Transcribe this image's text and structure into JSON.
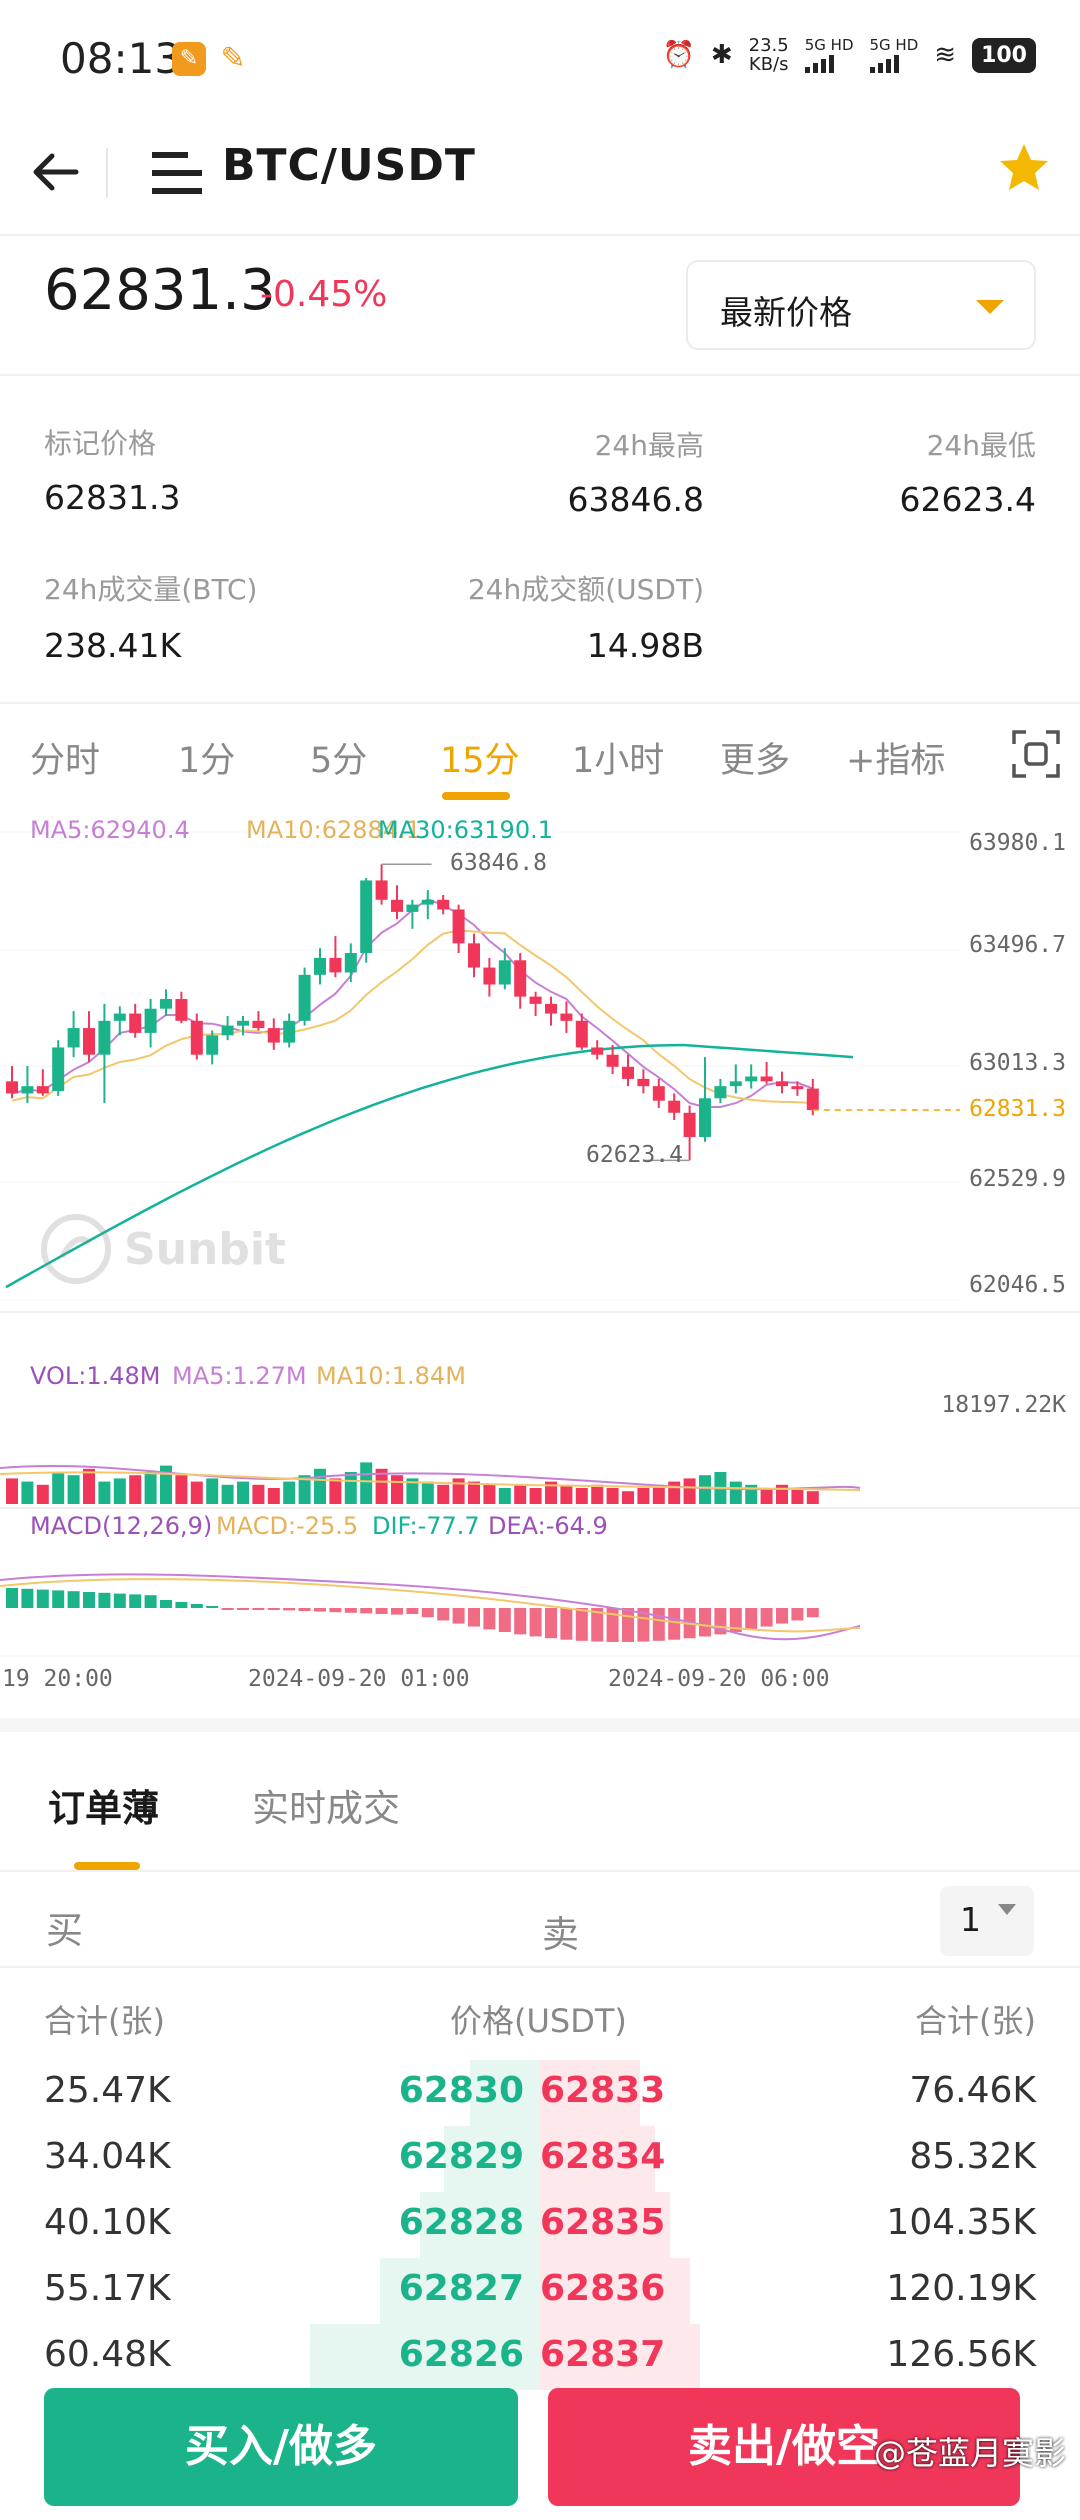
{
  "status_bar": {
    "time": "08:13",
    "net_speed": "23.5",
    "net_unit": "KB/s",
    "sig1": "5G HD",
    "sig2": "5G HD",
    "battery": "100"
  },
  "header": {
    "pair": "BTC/USDT"
  },
  "price": {
    "last": "62831.3",
    "change": "-0.45%",
    "selector": "最新价格"
  },
  "stats": {
    "mark_label": "标记价格",
    "mark_value": "62831.3",
    "high_label": "24h最高",
    "high_value": "63846.8",
    "low_label": "24h最低",
    "low_value": "62623.4",
    "vol_btc_label": "24h成交量(BTC)",
    "vol_btc_value": "238.41K",
    "vol_usdt_label": "24h成交额(USDT)",
    "vol_usdt_value": "14.98B"
  },
  "tabs": [
    "分时",
    "1分",
    "5分",
    "15分",
    "1小时",
    "更多",
    "+指标"
  ],
  "active_tab": "15分",
  "chart": {
    "ma_legend": {
      "ma5": "MA5:62940.4",
      "ma10": "MA10:62884.1",
      "ma30": "MA30:63190.1"
    },
    "y_ticks": [
      "63980.1",
      "63496.7",
      "63013.3",
      "62529.9",
      "62046.5"
    ],
    "current_price_tag": "62831.3",
    "high_marker": "63846.8",
    "low_marker": "62623.4",
    "watermark": "Sunbit",
    "vol_legend": {
      "vol": "VOL:1.48M",
      "ma5": "MA5:1.27M",
      "ma10": "MA10:1.84M"
    },
    "vol_max": "18197.22K",
    "macd_legend": {
      "name": "MACD(12,26,9)",
      "macd": "MACD:-25.5",
      "dif": "DIF:-77.7",
      "dea": "DEA:-64.9"
    },
    "x_ticks": [
      "19 20:00",
      "2024-09-20 01:00",
      "2024-09-20 06:00"
    ],
    "colors": {
      "up": "#1bb38a",
      "down": "#f0375a",
      "ma5": "#c77fd6",
      "ma10": "#f3c76b",
      "ma30": "#12b39a",
      "accent": "#f0a400"
    }
  },
  "chart_data": {
    "type": "candlestick",
    "timeframe": "15分",
    "ylim": [
      62046.5,
      63980.1
    ],
    "candles": [
      {
        "o": 62950,
        "h": 63013,
        "l": 62880,
        "c": 62900
      },
      {
        "o": 62900,
        "h": 63013,
        "l": 62860,
        "c": 62930
      },
      {
        "o": 62930,
        "h": 63000,
        "l": 62890,
        "c": 62900
      },
      {
        "o": 62910,
        "h": 63120,
        "l": 62890,
        "c": 63090
      },
      {
        "o": 63090,
        "h": 63240,
        "l": 63050,
        "c": 63170
      },
      {
        "o": 63170,
        "h": 63240,
        "l": 63030,
        "c": 63060
      },
      {
        "o": 63060,
        "h": 63270,
        "l": 62860,
        "c": 63200
      },
      {
        "o": 63200,
        "h": 63260,
        "l": 63140,
        "c": 63230
      },
      {
        "o": 63230,
        "h": 63270,
        "l": 63130,
        "c": 63150
      },
      {
        "o": 63150,
        "h": 63290,
        "l": 63090,
        "c": 63250
      },
      {
        "o": 63250,
        "h": 63330,
        "l": 63220,
        "c": 63290
      },
      {
        "o": 63290,
        "h": 63320,
        "l": 63190,
        "c": 63200
      },
      {
        "o": 63200,
        "h": 63230,
        "l": 63040,
        "c": 63060
      },
      {
        "o": 63060,
        "h": 63160,
        "l": 63020,
        "c": 63140
      },
      {
        "o": 63140,
        "h": 63220,
        "l": 63120,
        "c": 63180
      },
      {
        "o": 63180,
        "h": 63220,
        "l": 63140,
        "c": 63200
      },
      {
        "o": 63200,
        "h": 63240,
        "l": 63160,
        "c": 63170
      },
      {
        "o": 63170,
        "h": 63210,
        "l": 63080,
        "c": 63110
      },
      {
        "o": 63110,
        "h": 63230,
        "l": 63090,
        "c": 63200
      },
      {
        "o": 63200,
        "h": 63420,
        "l": 63180,
        "c": 63390
      },
      {
        "o": 63390,
        "h": 63500,
        "l": 63350,
        "c": 63460
      },
      {
        "o": 63460,
        "h": 63550,
        "l": 63380,
        "c": 63400
      },
      {
        "o": 63400,
        "h": 63520,
        "l": 63360,
        "c": 63480
      },
      {
        "o": 63480,
        "h": 63790,
        "l": 63440,
        "c": 63780
      },
      {
        "o": 63780,
        "h": 63846.8,
        "l": 63680,
        "c": 63700
      },
      {
        "o": 63700,
        "h": 63760,
        "l": 63620,
        "c": 63650
      },
      {
        "o": 63650,
        "h": 63700,
        "l": 63580,
        "c": 63680
      },
      {
        "o": 63680,
        "h": 63740,
        "l": 63620,
        "c": 63700
      },
      {
        "o": 63700,
        "h": 63720,
        "l": 63640,
        "c": 63660
      },
      {
        "o": 63660,
        "h": 63680,
        "l": 63480,
        "c": 63520
      },
      {
        "o": 63520,
        "h": 63560,
        "l": 63380,
        "c": 63420
      },
      {
        "o": 63420,
        "h": 63460,
        "l": 63300,
        "c": 63350
      },
      {
        "o": 63350,
        "h": 63500,
        "l": 63330,
        "c": 63450
      },
      {
        "o": 63450,
        "h": 63480,
        "l": 63250,
        "c": 63300
      },
      {
        "o": 63300,
        "h": 63320,
        "l": 63220,
        "c": 63270
      },
      {
        "o": 63270,
        "h": 63300,
        "l": 63180,
        "c": 63230
      },
      {
        "o": 63230,
        "h": 63280,
        "l": 63150,
        "c": 63200
      },
      {
        "o": 63200,
        "h": 63230,
        "l": 63080,
        "c": 63090
      },
      {
        "o": 63090,
        "h": 63120,
        "l": 63040,
        "c": 63060
      },
      {
        "o": 63060,
        "h": 63100,
        "l": 62980,
        "c": 63010
      },
      {
        "o": 63010,
        "h": 63060,
        "l": 62930,
        "c": 62960
      },
      {
        "o": 62960,
        "h": 63000,
        "l": 62900,
        "c": 62930
      },
      {
        "o": 62930,
        "h": 62960,
        "l": 62840,
        "c": 62870
      },
      {
        "o": 62870,
        "h": 62900,
        "l": 62790,
        "c": 62820
      },
      {
        "o": 62820,
        "h": 62850,
        "l": 62623.4,
        "c": 62720
      },
      {
        "o": 62720,
        "h": 63050,
        "l": 62700,
        "c": 62880
      },
      {
        "o": 62880,
        "h": 62960,
        "l": 62860,
        "c": 62930
      },
      {
        "o": 62930,
        "h": 63020,
        "l": 62900,
        "c": 62950
      },
      {
        "o": 62950,
        "h": 63020,
        "l": 62920,
        "c": 62970
      },
      {
        "o": 62970,
        "h": 63030,
        "l": 62940,
        "c": 62950
      },
      {
        "o": 62950,
        "h": 62990,
        "l": 62900,
        "c": 62930
      },
      {
        "o": 62930,
        "h": 62950,
        "l": 62890,
        "c": 62920
      },
      {
        "o": 62920,
        "h": 62960,
        "l": 62810,
        "c": 62831.3
      }
    ]
  },
  "orderbook": {
    "tabs": [
      "订单薄",
      "实时成交"
    ],
    "buy_label": "买",
    "sell_label": "卖",
    "precision": "1",
    "col_left": "合计(张)",
    "col_mid": "价格(USDT)",
    "col_right": "合计(张)",
    "rows": [
      {
        "bid_total": "25.47K",
        "bid": "62830",
        "ask": "62833",
        "ask_total": "76.46K"
      },
      {
        "bid_total": "34.04K",
        "bid": "62829",
        "ask": "62834",
        "ask_total": "85.32K"
      },
      {
        "bid_total": "40.10K",
        "bid": "62828",
        "ask": "62835",
        "ask_total": "104.35K"
      },
      {
        "bid_total": "55.17K",
        "bid": "62827",
        "ask": "62836",
        "ask_total": "120.19K"
      },
      {
        "bid_total": "60.48K",
        "bid": "62826",
        "ask": "62837",
        "ask_total": "126.56K"
      }
    ]
  },
  "actions": {
    "buy": "买入/做多",
    "sell": "卖出/做空"
  },
  "watermark_text": "@苍蓝月寞影"
}
